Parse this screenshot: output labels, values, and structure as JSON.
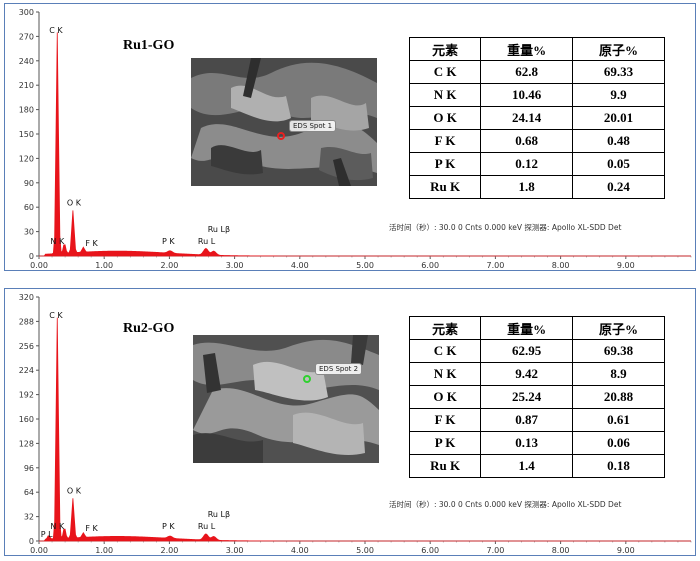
{
  "colors": {
    "spectrum": "#e8141b",
    "frame": "#5a7fb8",
    "marker1": "#e82020",
    "marker2": "#2fd12f"
  },
  "panels": [
    {
      "sample_title": "Ru1-GO",
      "spot_label": "EDS Spot 1",
      "footer": "活时间（秒）: 30.0 0 Cnts  0.000 keV 探测器: Apollo XL-SDD Det",
      "table": {
        "headers": [
          "元素",
          "重量%",
          "原子%"
        ],
        "rows": [
          [
            "C K",
            "62.8",
            "69.33"
          ],
          [
            "N K",
            "10.46",
            "9.9"
          ],
          [
            "O K",
            "24.14",
            "20.01"
          ],
          [
            "F K",
            "0.68",
            "0.48"
          ],
          [
            "P K",
            "0.12",
            "0.05"
          ],
          [
            "Ru K",
            "1.8",
            "0.24"
          ]
        ]
      }
    },
    {
      "sample_title": "Ru2-GO",
      "spot_label": "EDS Spot 2",
      "footer": "活时间（秒）: 30.0 0 Cnts  0.000 keV 探测器: Apollo XL-SDD Det",
      "table": {
        "headers": [
          "元素",
          "重量%",
          "原子%"
        ],
        "rows": [
          [
            "C K",
            "62.95",
            "69.38"
          ],
          [
            "N K",
            "9.42",
            "8.9"
          ],
          [
            "O K",
            "25.24",
            "20.88"
          ],
          [
            "F K",
            "0.87",
            "0.61"
          ],
          [
            "P K",
            "0.13",
            "0.06"
          ],
          [
            "Ru K",
            "1.4",
            "0.18"
          ]
        ]
      }
    }
  ],
  "chart_data": [
    {
      "type": "area",
      "xlabel": "",
      "ylabel": "",
      "xlim": [
        0,
        10
      ],
      "ylim": [
        0,
        300
      ],
      "x_ticks": [
        "0.00",
        "1.00",
        "2.00",
        "3.00",
        "4.00",
        "5.00",
        "6.00",
        "7.00",
        "8.00",
        "9.00"
      ],
      "y_ticks": [
        "0",
        "30",
        "60",
        "90",
        "120",
        "150",
        "180",
        "210",
        "240",
        "270",
        "300"
      ],
      "peaks": [
        {
          "label": "C K",
          "x": 0.28,
          "y": 272
        },
        {
          "label": "N K",
          "x": 0.39,
          "y": 12
        },
        {
          "label": "O K",
          "x": 0.52,
          "y": 52
        },
        {
          "label": "F K",
          "x": 0.68,
          "y": 6
        },
        {
          "label": "P K",
          "x": 2.01,
          "y": 3
        },
        {
          "label": "Ru L",
          "x": 2.56,
          "y": 8
        },
        {
          "label": "Ru Lβ",
          "x": 2.68,
          "y": 5
        }
      ]
    },
    {
      "type": "area",
      "xlabel": "",
      "ylabel": "",
      "xlim": [
        0,
        10
      ],
      "ylim": [
        0,
        320
      ],
      "x_ticks": [
        "0.00",
        "1.00",
        "2.00",
        "3.00",
        "4.00",
        "5.00",
        "6.00",
        "7.00",
        "8.00",
        "9.00"
      ],
      "y_ticks": [
        "0",
        "32",
        "64",
        "96",
        "128",
        "160",
        "192",
        "224",
        "256",
        "288",
        "320"
      ],
      "peaks": [
        {
          "label": "P L",
          "x": 0.15,
          "y": 5
        },
        {
          "label": "C K",
          "x": 0.28,
          "y": 290
        },
        {
          "label": "N K",
          "x": 0.39,
          "y": 14
        },
        {
          "label": "O K",
          "x": 0.52,
          "y": 52
        },
        {
          "label": "F K",
          "x": 0.68,
          "y": 6
        },
        {
          "label": "P K",
          "x": 2.01,
          "y": 3
        },
        {
          "label": "Ru L",
          "x": 2.56,
          "y": 8
        },
        {
          "label": "Ru Lβ",
          "x": 2.68,
          "y": 5
        }
      ]
    }
  ]
}
